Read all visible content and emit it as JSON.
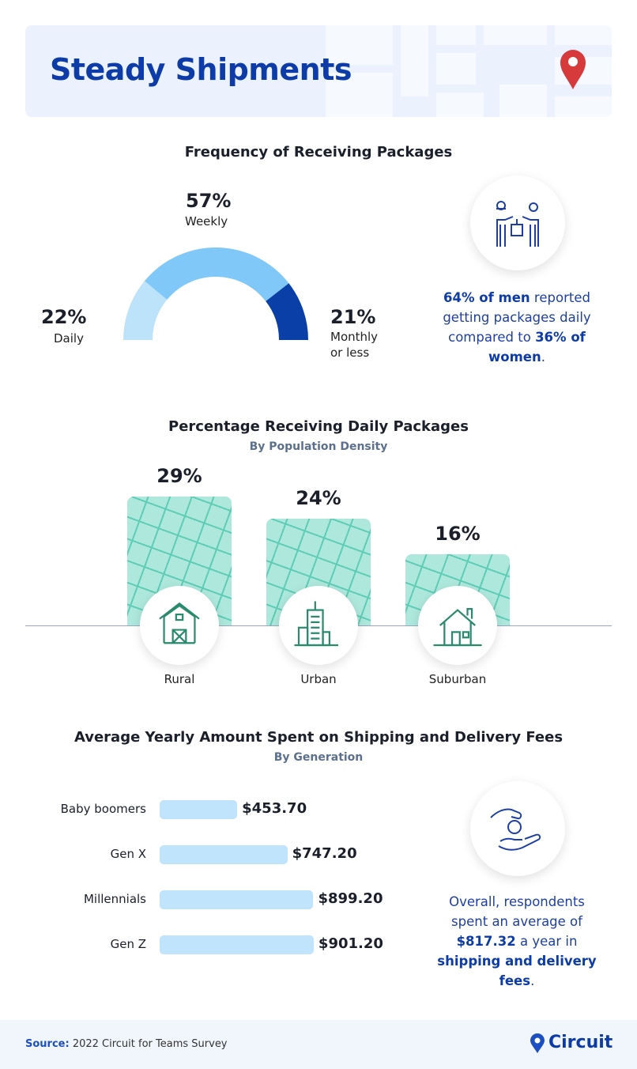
{
  "header": {
    "title": "Steady Shipments",
    "pin_icon": "map-pin-icon",
    "accent": "#0d3ca8"
  },
  "chart_data": [
    {
      "type": "pie",
      "variant": "semicircle-donut",
      "title": "Frequency of Receiving Packages",
      "categories": [
        "Daily",
        "Weekly",
        "Monthly or less"
      ],
      "values": [
        22,
        57,
        21
      ],
      "labels": [
        "22%",
        "57%",
        "21%"
      ],
      "label_lines": {
        "monthly_1": "Monthly",
        "monthly_2": "or less"
      },
      "colors": [
        "#bde3fb",
        "#80c8f8",
        "#0a3fa8"
      ]
    },
    {
      "type": "bar",
      "title": "Percentage Receiving Daily Packages",
      "subtitle": "By Population Density",
      "categories": [
        "Rural",
        "Urban",
        "Suburban"
      ],
      "values": [
        29,
        24,
        16
      ],
      "labels": [
        "29%",
        "24%",
        "16%"
      ],
      "icons": [
        "barn-icon",
        "city-buildings-icon",
        "house-icon"
      ],
      "color": "#aee8dd"
    },
    {
      "type": "bar",
      "orientation": "horizontal",
      "title": "Average Yearly Amount Spent on Shipping and Delivery Fees",
      "subtitle": "By Generation",
      "categories": [
        "Baby boomers",
        "Gen X",
        "Millennials",
        "Gen Z"
      ],
      "values": [
        453.7,
        747.2,
        899.2,
        901.2
      ],
      "labels": [
        "$453.70",
        "$747.20",
        "$899.20",
        "$901.20"
      ],
      "color": "#bfe4fb"
    }
  ],
  "callout1": {
    "icon": "package-handoff-icon",
    "b1": "64% of men",
    "t1": " reported getting packages daily compared to ",
    "b2": "36% of women",
    "t2": "."
  },
  "callout2": {
    "icon": "hand-coin-icon",
    "t1": "Overall, respondents spent an average of ",
    "b1": "$817.32",
    "t2": " a year in ",
    "b2": "shipping and delivery fees",
    "t3": "."
  },
  "footer": {
    "source_label": "Source:",
    "source_text": " 2022 Circuit for Teams Survey",
    "brand": "Circuit",
    "brand_icon": "circuit-pin-logo-icon"
  }
}
